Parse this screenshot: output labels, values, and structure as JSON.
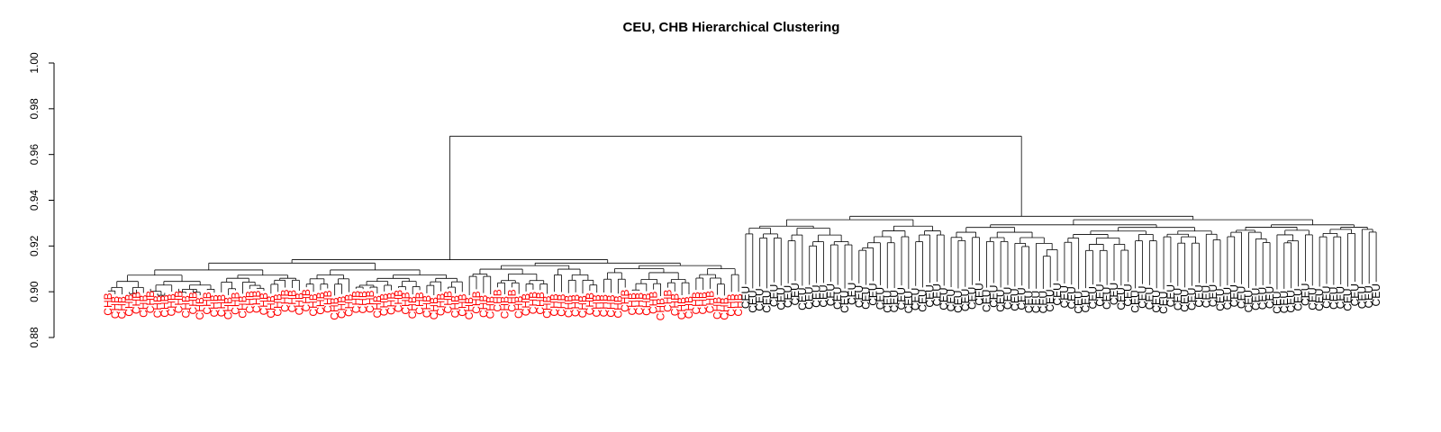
{
  "chart_data": {
    "type": "dendrogram",
    "title": "CEU, CHB Hierarchical Clustering",
    "ylabel": "",
    "ylim": [
      0.88,
      1.0
    ],
    "y_ticks": [
      "0.88",
      "0.90",
      "0.92",
      "0.94",
      "0.96",
      "0.98",
      "1.00"
    ],
    "root_height": 0.968,
    "colors": {
      "CHB": "#ff0000",
      "CEU": "#000000",
      "links": "#000000"
    },
    "groups": [
      {
        "name": "CHB",
        "count": 90,
        "label_color": "#ff0000",
        "merge_height": 0.914
      },
      {
        "name": "CEU",
        "count": 90,
        "label_color": "#000000",
        "merge_height": 0.933
      }
    ]
  }
}
